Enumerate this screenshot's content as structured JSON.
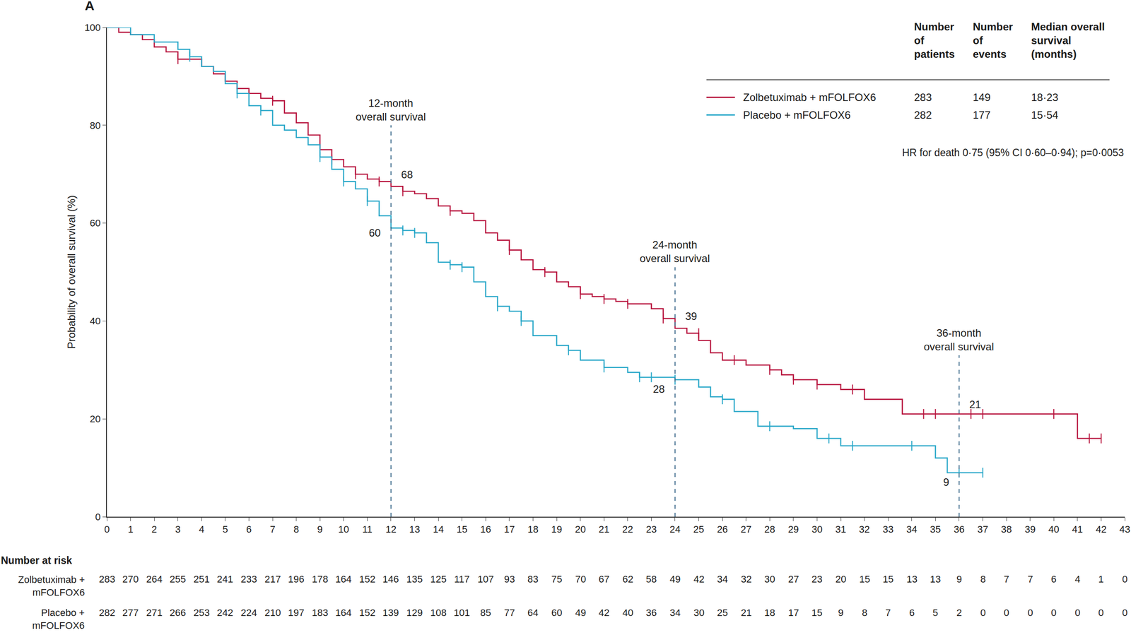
{
  "chart_data": {
    "type": "step",
    "panel": "A",
    "y_label": "Probability of overall survival (%)",
    "xlim": [
      0,
      43
    ],
    "xticks": [
      0,
      1,
      2,
      3,
      4,
      5,
      6,
      7,
      8,
      9,
      10,
      11,
      12,
      13,
      14,
      15,
      16,
      17,
      18,
      19,
      20,
      21,
      22,
      23,
      24,
      25,
      26,
      27,
      28,
      29,
      30,
      31,
      32,
      33,
      34,
      35,
      36,
      37,
      38,
      39,
      40,
      41,
      42,
      43
    ],
    "ylim": [
      0,
      100
    ],
    "yticks": [
      0,
      20,
      40,
      60,
      80,
      100
    ],
    "grid": false,
    "series": [
      {
        "name": "Zolbetuximab + mFOLFOX6",
        "color": "#b8163f",
        "marker": "line-ns-open",
        "patients": 283,
        "events": 149,
        "median_os": "18·23",
        "x": [
          0,
          0.5,
          1,
          1.5,
          2,
          2.5,
          3,
          3.5,
          4,
          4.5,
          5,
          5.5,
          6,
          6.5,
          7,
          7.5,
          8,
          8.5,
          9,
          9.5,
          10,
          10.5,
          11,
          11.5,
          12,
          12.5,
          13,
          13.5,
          14,
          14.5,
          15,
          15.5,
          16,
          16.5,
          17,
          17.5,
          18,
          18.5,
          19,
          19.5,
          20,
          20.5,
          21,
          21.5,
          22,
          23,
          23.5,
          24,
          24.5,
          25,
          25.5,
          26,
          27,
          28,
          28.5,
          29,
          30,
          31,
          32,
          33,
          33.6,
          35,
          36,
          37,
          40,
          41,
          42
        ],
        "values": [
          100,
          99,
          98.5,
          97.5,
          96,
          95,
          93.5,
          93.5,
          92,
          90.5,
          89,
          87.5,
          86.5,
          85.5,
          85,
          82.5,
          80.5,
          78,
          75,
          73,
          71.5,
          70,
          69,
          68.5,
          67.5,
          66.5,
          66,
          65,
          63.5,
          62.5,
          62,
          60.5,
          58,
          56.5,
          54.5,
          52.5,
          50.5,
          50,
          48,
          47,
          45.5,
          45,
          44.5,
          44,
          43.5,
          42.5,
          40.5,
          38.5,
          37.5,
          36,
          33.5,
          32,
          31,
          30,
          29,
          28,
          27,
          26,
          24,
          24,
          21,
          21,
          21,
          21,
          21,
          16,
          16
        ],
        "censored": {
          "x": [
            3,
            7,
            9.5,
            10.5,
            11.5,
            12.5,
            14.5,
            17,
            18.5,
            20,
            21,
            22,
            23.5,
            25,
            26.5,
            28,
            29,
            30,
            31.5,
            34.5,
            35,
            36.5,
            37,
            40,
            41.5,
            42
          ],
          "values": [
            93.5,
            85,
            73,
            70,
            68.5,
            66.5,
            62.5,
            54.5,
            50,
            45.5,
            44.5,
            43.5,
            40.5,
            37.5,
            32,
            30,
            28,
            27,
            26,
            21,
            21,
            21,
            21,
            21,
            16,
            16
          ]
        }
      },
      {
        "name": "Placebo + mFOLFOX6",
        "color": "#2aa8c9",
        "marker": "line-ns-open",
        "patients": 282,
        "events": 177,
        "median_os": "15·54",
        "x": [
          0,
          1,
          2,
          3,
          3.5,
          4,
          4.5,
          5,
          5.5,
          6,
          6.5,
          7,
          7.5,
          8,
          8.5,
          9,
          9.5,
          10,
          10.5,
          11,
          11.5,
          12,
          12.5,
          13,
          13.5,
          14,
          14.5,
          15,
          15.5,
          16,
          16.5,
          17,
          17.5,
          18,
          19,
          19.5,
          20,
          21,
          22,
          22.5,
          24,
          25,
          25.5,
          26,
          26.5,
          27.5,
          29,
          30,
          31,
          34,
          35,
          35.5,
          36,
          37
        ],
        "values": [
          100,
          98.5,
          97,
          95.5,
          94,
          92,
          91,
          88.5,
          86.5,
          84,
          83,
          80,
          79,
          77.5,
          76,
          73.5,
          71,
          68.5,
          67,
          64.5,
          61.5,
          59,
          58.5,
          58,
          56,
          52,
          51.5,
          51,
          48,
          45,
          43,
          42,
          40,
          37,
          35,
          34,
          32,
          30.5,
          29.5,
          28.5,
          28,
          26.5,
          24.5,
          24,
          21.5,
          18.5,
          18,
          16,
          14.5,
          14.5,
          12,
          9,
          9,
          9
        ],
        "censored": {
          "x": [
            3.5,
            5.5,
            6.5,
            9,
            10,
            11,
            12.5,
            13,
            14.5,
            15,
            16.5,
            17.5,
            19.5,
            21,
            22.5,
            23,
            24,
            26,
            28,
            30.5,
            31.5,
            34,
            36,
            37
          ],
          "values": [
            94,
            86.5,
            83,
            73.5,
            68.5,
            64.5,
            58.5,
            58,
            51.5,
            51,
            43,
            40,
            34,
            30.5,
            28.5,
            28.5,
            28,
            24,
            18.5,
            16,
            14.5,
            14.5,
            9,
            9
          ]
        }
      }
    ],
    "legend_header": [
      [
        "Number",
        "of",
        "patients"
      ],
      [
        "Number",
        "of",
        "events"
      ],
      [
        "Median overall",
        "survival",
        "(months)"
      ]
    ],
    "hr_text": "HR for death 0·75 (95% CI 0·60–0·94); p=0·0053",
    "landmarks": [
      {
        "x": 12,
        "label": [
          "12-month",
          "overall survival"
        ],
        "values": [
          68,
          60
        ]
      },
      {
        "x": 24,
        "label": [
          "24-month",
          "overall survival"
        ],
        "values": [
          39,
          28
        ]
      },
      {
        "x": 36,
        "label": [
          "36-month",
          "overall survival"
        ],
        "values": [
          21,
          9
        ]
      }
    ],
    "at_risk": {
      "title": "Number at risk",
      "x": [
        0,
        1,
        2,
        3,
        4,
        5,
        6,
        7,
        8,
        9,
        10,
        11,
        12,
        13,
        14,
        15,
        16,
        17,
        18,
        19,
        20,
        21,
        22,
        23,
        24,
        25,
        26,
        27,
        28,
        29,
        30,
        31,
        32,
        33,
        34,
        35,
        36,
        37,
        38,
        39,
        40,
        41,
        42,
        43
      ],
      "rows": [
        {
          "label": [
            "Zolbetuximab +",
            "mFOLFOX6"
          ],
          "values": [
            283,
            270,
            264,
            255,
            251,
            241,
            233,
            217,
            196,
            178,
            164,
            152,
            146,
            135,
            125,
            117,
            107,
            93,
            83,
            75,
            70,
            67,
            62,
            58,
            49,
            42,
            34,
            32,
            30,
            27,
            23,
            20,
            15,
            15,
            13,
            13,
            9,
            8,
            7,
            7,
            6,
            4,
            1,
            0
          ]
        },
        {
          "label": [
            "Placebo +",
            "mFOLFOX6"
          ],
          "values": [
            282,
            277,
            271,
            266,
            253,
            242,
            224,
            210,
            197,
            183,
            164,
            152,
            139,
            129,
            108,
            101,
            85,
            77,
            64,
            60,
            49,
            42,
            40,
            36,
            34,
            30,
            25,
            21,
            18,
            17,
            15,
            9,
            8,
            7,
            6,
            5,
            2,
            0,
            0,
            0,
            0,
            0,
            0,
            0
          ]
        }
      ]
    }
  }
}
